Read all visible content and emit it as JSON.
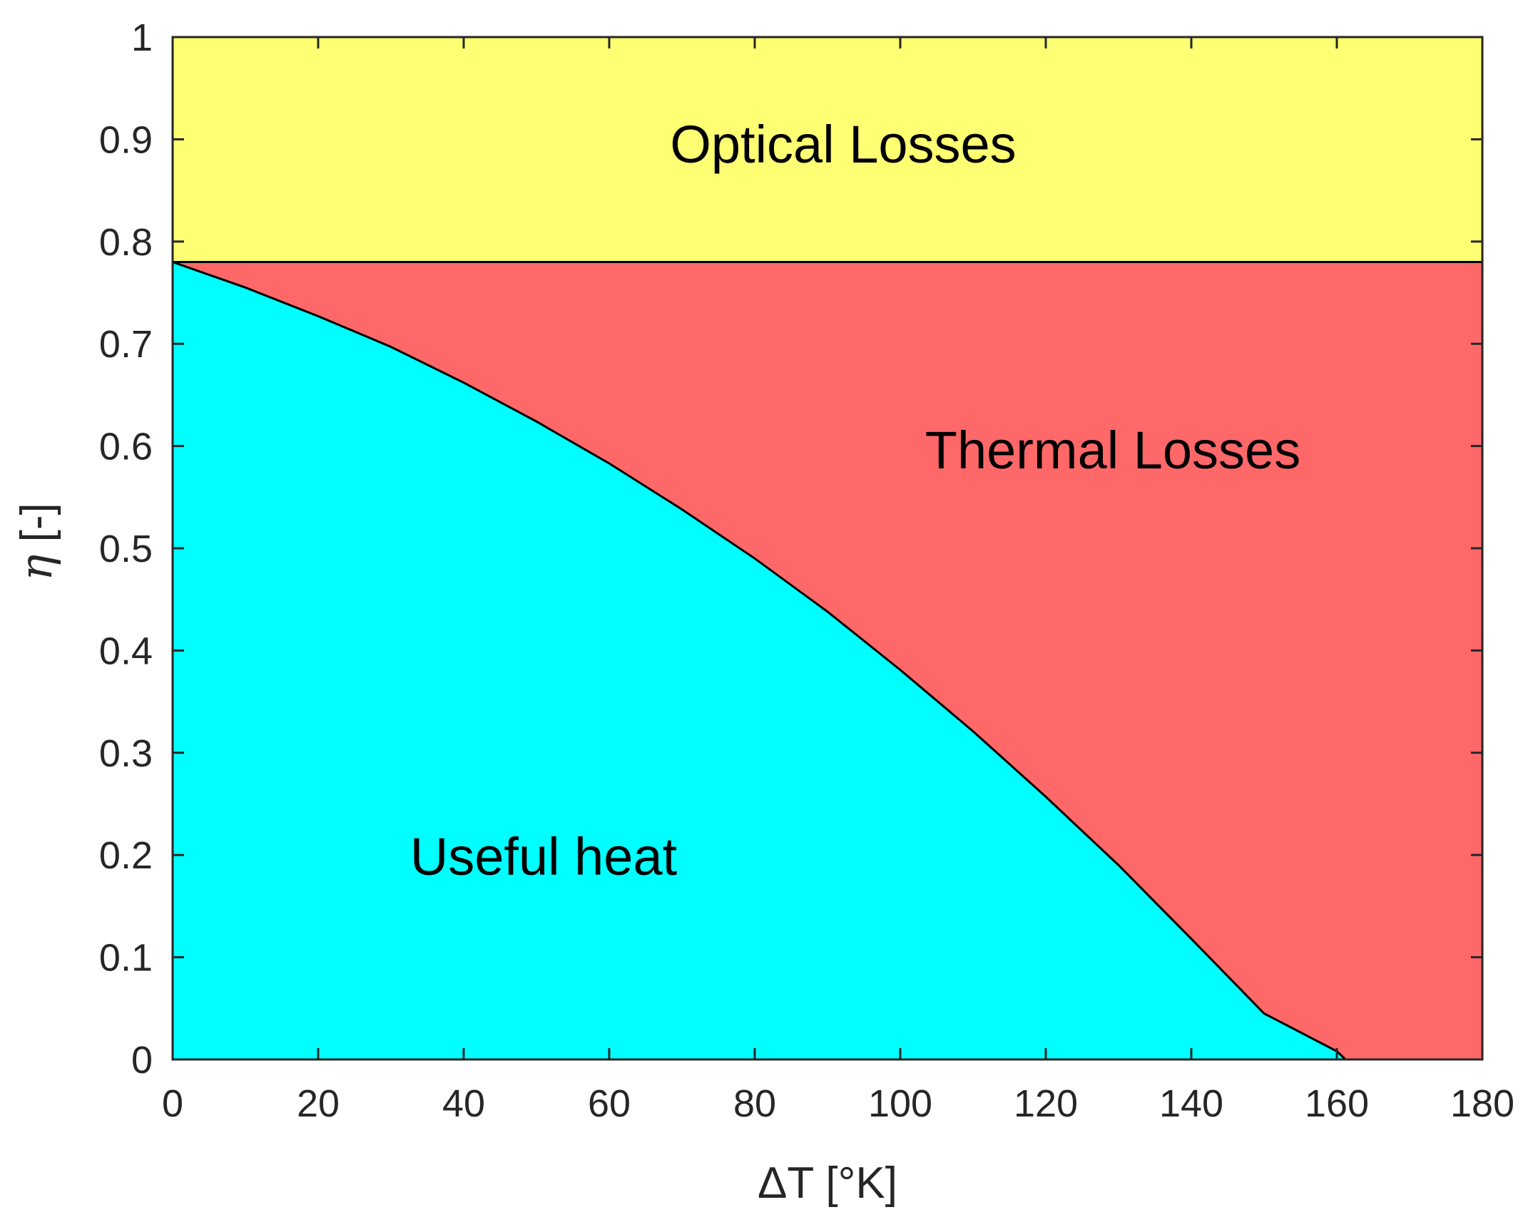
{
  "chart_data": {
    "type": "area",
    "title": "",
    "xlabel": "ΔT [°K]",
    "ylabel_symbol": "η",
    "ylabel_unit": " [-]",
    "xlim": [
      0,
      180
    ],
    "ylim": [
      0,
      1
    ],
    "x_ticks": [
      "0",
      "20",
      "40",
      "60",
      "80",
      "100",
      "120",
      "140",
      "160",
      "180"
    ],
    "y_ticks": [
      "0",
      "0.1",
      "0.2",
      "0.3",
      "0.4",
      "0.5",
      "0.6",
      "0.7",
      "0.8",
      "0.9",
      "1"
    ],
    "optical_efficiency": 0.78,
    "curve": {
      "x": [
        0,
        10,
        20,
        30,
        40,
        50,
        60,
        70,
        80,
        90,
        100,
        110,
        120,
        130,
        140,
        150,
        160,
        161.2
      ],
      "y": [
        0.78,
        0.755,
        0.727,
        0.697,
        0.662,
        0.624,
        0.583,
        0.538,
        0.49,
        0.438,
        0.381,
        0.321,
        0.257,
        0.19,
        0.118,
        0.045,
        0.008,
        0.0
      ]
    },
    "regions": [
      {
        "name": "Optical Losses",
        "color": "#ffff73"
      },
      {
        "name": "Thermal Losses",
        "color": "#ff6868"
      },
      {
        "name": "Useful heat",
        "color": "#00ffff"
      }
    ]
  }
}
